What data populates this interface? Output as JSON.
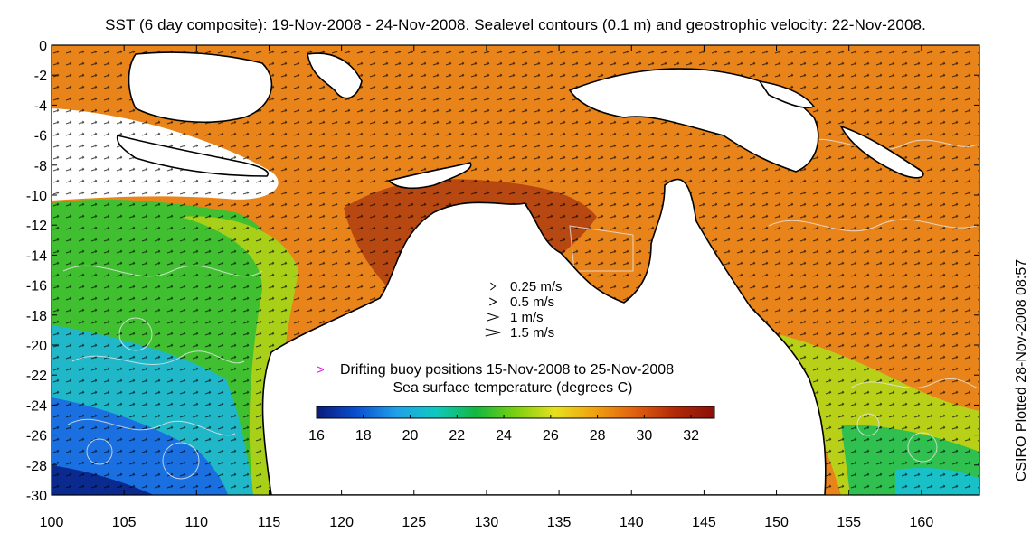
{
  "title": "SST (6 day composite): 19-Nov-2008 - 24-Nov-2008. Sealevel contours (0.1 m) and geostrophic velocity: 22-Nov-2008.",
  "side_note": "CSIRO Plotted 28-Nov-2008 08:57",
  "axes": {
    "x_ticks": [
      "100",
      "105",
      "110",
      "115",
      "120",
      "125",
      "130",
      "135",
      "140",
      "145",
      "150",
      "155",
      "160"
    ],
    "y_ticks": [
      "0",
      "-2",
      "-4",
      "-6",
      "-8",
      "-10",
      "-12",
      "-14",
      "-16",
      "-18",
      "-20",
      "-22",
      "-24",
      "-26",
      "-28",
      "-30"
    ],
    "xlim": [
      100,
      164
    ],
    "ylim": [
      -30,
      0
    ]
  },
  "velocity_legend": [
    {
      "label": "0.25 m/s",
      "speed": 0.25
    },
    {
      "label": "0.5 m/s",
      "speed": 0.5
    },
    {
      "label": "1 m/s",
      "speed": 1
    },
    {
      "label": "1.5 m/s",
      "speed": 1.5
    }
  ],
  "buoy_legend": {
    "symbol": ">",
    "label": "Drifting buoy positions 15-Nov-2008 to 25-Nov-2008",
    "color": "#d020d0"
  },
  "colorbar": {
    "title": "Sea surface temperature (degrees C)",
    "range": [
      16,
      33
    ],
    "ticks": [
      "16",
      "18",
      "20",
      "22",
      "24",
      "26",
      "28",
      "30",
      "32"
    ],
    "colors": [
      "#0a1a7a",
      "#0a4fd0",
      "#1fa0e8",
      "#10c8c0",
      "#12b840",
      "#7ad010",
      "#e8e020",
      "#f0a010",
      "#e06010",
      "#b02a08",
      "#8a1008"
    ]
  },
  "colors": {
    "land": "#ffffff",
    "coast": "#000000",
    "contour": "#e8e8e8"
  }
}
